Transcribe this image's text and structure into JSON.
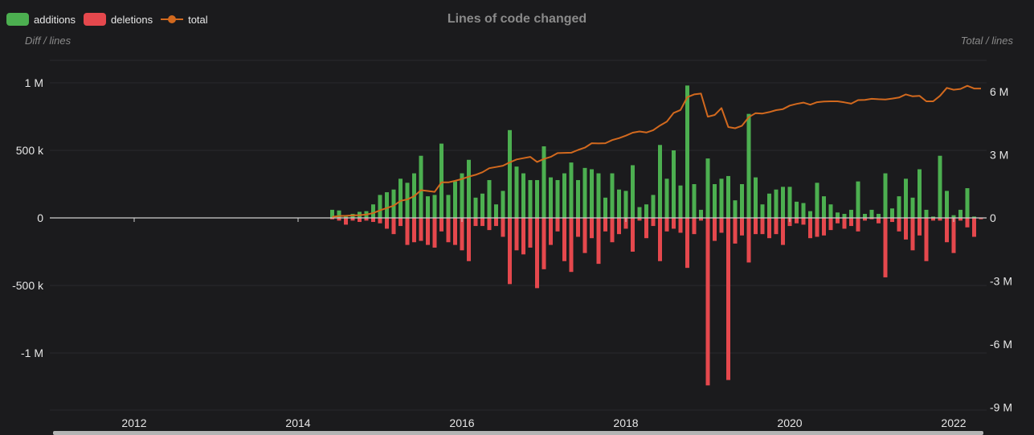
{
  "legend": {
    "additions": "additions",
    "deletions": "deletions",
    "total": "total"
  },
  "colors": {
    "additions": "#4caf50",
    "deletions": "#e5484d",
    "total": "#d2691e",
    "background": "#1b1b1d"
  },
  "chart_data": {
    "type": "bar",
    "title": "Lines of code changed",
    "ylabel": "Diff / lines",
    "ylabel_right": "Total / lines",
    "x_ticks": [
      "2012",
      "2014",
      "2016",
      "2018",
      "2020",
      "2022"
    ],
    "y_ticks": [
      "1 M",
      "500 k",
      "0",
      "-500 k",
      "-1 M"
    ],
    "y_right_ticks": [
      "6 M",
      "3 M",
      "0",
      "-3 M",
      "-6 M",
      "-9 M"
    ],
    "ylim": [
      -1400000,
      1150000
    ],
    "ylim_right": [
      -9000000,
      7500000
    ],
    "grid": true,
    "legend_position": "top-left",
    "x": [
      "2014-06",
      "2014-07",
      "2014-08",
      "2014-09",
      "2014-10",
      "2014-11",
      "2014-12",
      "2015-01",
      "2015-02",
      "2015-03",
      "2015-04",
      "2015-05",
      "2015-06",
      "2015-07",
      "2015-08",
      "2015-09",
      "2015-10",
      "2015-11",
      "2015-12",
      "2016-01",
      "2016-02",
      "2016-03",
      "2016-04",
      "2016-05",
      "2016-06",
      "2016-07",
      "2016-08",
      "2016-09",
      "2016-10",
      "2016-11",
      "2016-12",
      "2017-01",
      "2017-02",
      "2017-03",
      "2017-04",
      "2017-05",
      "2017-06",
      "2017-07",
      "2017-08",
      "2017-09",
      "2017-10",
      "2017-11",
      "2017-12",
      "2018-01",
      "2018-02",
      "2018-03",
      "2018-04",
      "2018-05",
      "2018-06",
      "2018-07",
      "2018-08",
      "2018-09",
      "2018-10",
      "2018-11",
      "2018-12",
      "2019-01",
      "2019-02",
      "2019-03",
      "2019-04",
      "2019-05",
      "2019-06",
      "2019-07",
      "2019-08",
      "2019-09",
      "2019-10",
      "2019-11",
      "2019-12",
      "2020-01",
      "2020-02",
      "2020-03",
      "2020-04",
      "2020-05",
      "2020-06",
      "2020-07",
      "2020-08",
      "2020-09",
      "2020-10",
      "2020-11",
      "2020-12",
      "2021-01",
      "2021-02",
      "2021-03",
      "2021-04",
      "2021-05",
      "2021-06",
      "2021-07",
      "2021-08",
      "2021-09",
      "2021-10",
      "2021-11",
      "2021-12",
      "2022-01",
      "2022-02",
      "2022-03",
      "2022-04",
      "2022-05"
    ],
    "series": [
      {
        "name": "additions",
        "values": [
          60000,
          55000,
          10000,
          30000,
          45000,
          50000,
          100000,
          170000,
          190000,
          210000,
          290000,
          260000,
          330000,
          460000,
          160000,
          170000,
          550000,
          170000,
          270000,
          330000,
          430000,
          150000,
          180000,
          280000,
          100000,
          200000,
          650000,
          380000,
          330000,
          280000,
          280000,
          530000,
          300000,
          280000,
          330000,
          410000,
          280000,
          370000,
          360000,
          330000,
          150000,
          330000,
          210000,
          200000,
          390000,
          80000,
          100000,
          170000,
          540000,
          290000,
          500000,
          240000,
          980000,
          250000,
          60000,
          440000,
          250000,
          290000,
          310000,
          130000,
          250000,
          770000,
          300000,
          100000,
          180000,
          210000,
          230000,
          230000,
          120000,
          110000,
          50000,
          260000,
          160000,
          100000,
          40000,
          30000,
          60000,
          270000,
          30000,
          60000,
          30000,
          330000,
          70000,
          160000,
          290000,
          150000,
          360000,
          60000,
          10000,
          460000,
          200000,
          20000,
          60000,
          220000,
          10000,
          0
        ]
      },
      {
        "name": "deletions",
        "values": [
          -10000,
          -20000,
          -50000,
          -20000,
          -30000,
          -20000,
          -30000,
          -40000,
          -80000,
          -120000,
          -60000,
          -200000,
          -180000,
          -170000,
          -200000,
          -220000,
          -100000,
          -180000,
          -200000,
          -240000,
          -320000,
          -60000,
          -60000,
          -90000,
          -60000,
          -140000,
          -490000,
          -240000,
          -270000,
          -220000,
          -520000,
          -380000,
          -200000,
          -100000,
          -320000,
          -400000,
          -140000,
          -260000,
          -150000,
          -340000,
          -100000,
          -180000,
          -120000,
          -80000,
          -250000,
          -20000,
          -150000,
          -60000,
          -320000,
          -100000,
          -80000,
          -110000,
          -370000,
          -120000,
          -20000,
          -1240000,
          -170000,
          -110000,
          -1200000,
          -190000,
          -130000,
          -330000,
          -120000,
          -120000,
          -150000,
          -120000,
          -200000,
          -60000,
          -40000,
          -50000,
          -150000,
          -140000,
          -130000,
          -90000,
          -40000,
          -80000,
          -60000,
          -100000,
          -20000,
          -10000,
          -40000,
          -440000,
          -30000,
          -100000,
          -160000,
          -240000,
          -130000,
          -320000,
          -20000,
          -20000,
          -180000,
          -260000,
          -20000,
          -70000,
          -140000,
          -10000
        ]
      },
      {
        "name": "total",
        "axis": "right",
        "values": [
          50000,
          90000,
          100000,
          120000,
          130000,
          160000,
          230000,
          360000,
          470000,
          580000,
          810000,
          880000,
          1030000,
          1320000,
          1280000,
          1240000,
          1690000,
          1690000,
          1760000,
          1850000,
          1960000,
          2050000,
          2170000,
          2360000,
          2420000,
          2480000,
          2640000,
          2780000,
          2840000,
          2900000,
          2660000,
          2800000,
          2900000,
          3080000,
          3090000,
          3100000,
          3230000,
          3340000,
          3550000,
          3540000,
          3550000,
          3700000,
          3790000,
          3910000,
          4050000,
          4110000,
          4060000,
          4170000,
          4390000,
          4580000,
          4990000,
          5130000,
          5740000,
          5870000,
          5910000,
          4810000,
          4890000,
          5220000,
          4320000,
          4260000,
          4380000,
          4790000,
          4980000,
          4960000,
          5030000,
          5120000,
          5170000,
          5340000,
          5420000,
          5480000,
          5380000,
          5500000,
          5530000,
          5540000,
          5540000,
          5490000,
          5430000,
          5600000,
          5610000,
          5660000,
          5640000,
          5630000,
          5670000,
          5720000,
          5870000,
          5780000,
          5800000,
          5540000,
          5540000,
          5800000,
          6180000,
          6090000,
          6130000,
          6280000,
          6150000,
          6150000
        ]
      }
    ]
  }
}
